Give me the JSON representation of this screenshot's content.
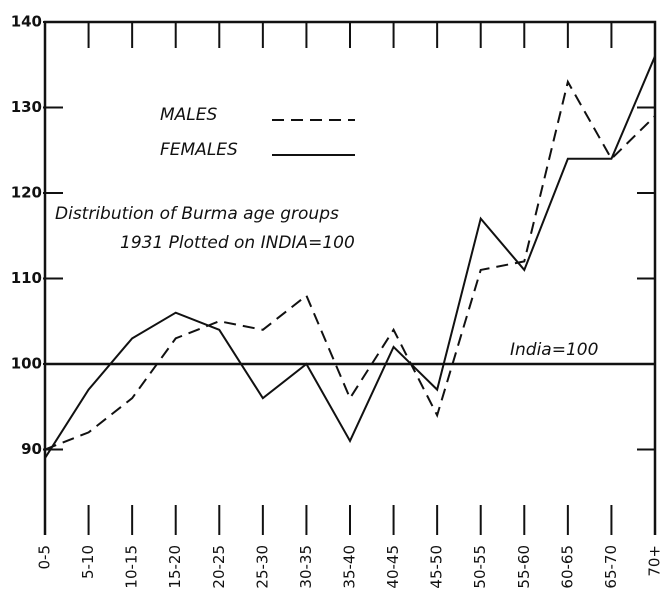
{
  "chart_data": {
    "type": "line",
    "title": "Distribution of Burma age groups",
    "subtitle": "1931 Plotted on INDIA=100",
    "categories": [
      "0-5",
      "5-10",
      "10-15",
      "15-20",
      "20-25",
      "25-30",
      "30-35",
      "35-40",
      "40-45",
      "45-50",
      "50-55",
      "55-60",
      "60-65",
      "65-70",
      "70+"
    ],
    "series": [
      {
        "name": "MALES",
        "color": "#111111",
        "style": "dashed",
        "values": [
          90,
          92,
          96,
          103,
          105,
          104,
          108,
          96,
          104,
          94,
          111,
          112,
          133,
          124,
          129
        ]
      },
      {
        "name": "FEMALES",
        "color": "#111111",
        "style": "solid",
        "values": [
          89,
          97,
          103,
          106,
          104,
          96,
          100,
          91,
          102,
          97,
          117,
          111,
          124,
          124,
          136
        ]
      }
    ],
    "reference_line": {
      "value": 100,
      "label": "India=100"
    },
    "ylim": [
      80,
      140
    ],
    "yticks": [
      90,
      100,
      110,
      120,
      130,
      140
    ]
  }
}
